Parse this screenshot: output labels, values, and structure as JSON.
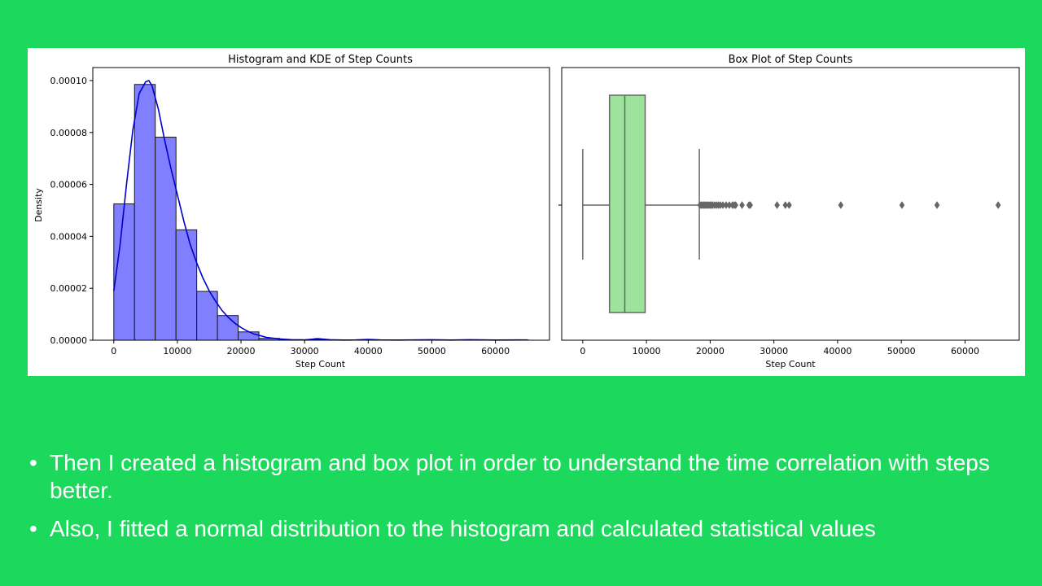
{
  "chart_data": [
    {
      "type": "histogram",
      "title": "Histogram and KDE of Step Counts",
      "xlabel": "Step Count",
      "ylabel": "Density",
      "xlim": [
        -3300,
        68500
      ],
      "ylim": [
        0,
        0.000105
      ],
      "xticks": [
        0,
        10000,
        20000,
        30000,
        40000,
        50000,
        60000
      ],
      "yticks": [
        0,
        2e-05,
        4e-05,
        6e-05,
        8e-05,
        0.0001
      ],
      "ytick_labels": [
        "0.00000",
        "0.00002",
        "0.00004",
        "0.00006",
        "0.00008",
        "0.00010"
      ],
      "bin_width": 3260,
      "bins": [
        {
          "x0": 0,
          "density": 5.25e-05
        },
        {
          "x0": 3260,
          "density": 9.85e-05
        },
        {
          "x0": 6520,
          "density": 7.82e-05
        },
        {
          "x0": 9780,
          "density": 4.25e-05
        },
        {
          "x0": 13040,
          "density": 1.88e-05
        },
        {
          "x0": 16300,
          "density": 9.5e-06
        },
        {
          "x0": 19560,
          "density": 3.2e-06
        },
        {
          "x0": 22820,
          "density": 7e-07
        },
        {
          "x0": 26080,
          "density": 2e-07
        },
        {
          "x0": 29340,
          "density": 2e-07
        },
        {
          "x0": 32600,
          "density": 1e-07
        },
        {
          "x0": 35860,
          "density": 1e-07
        },
        {
          "x0": 39120,
          "density": 1e-07
        },
        {
          "x0": 42380,
          "density": 1e-07
        },
        {
          "x0": 45640,
          "density": 1e-07
        },
        {
          "x0": 48900,
          "density": 1e-07
        },
        {
          "x0": 52160,
          "density": 1e-07
        },
        {
          "x0": 55420,
          "density": 1e-07
        },
        {
          "x0": 58680,
          "density": 1e-07
        },
        {
          "x0": 61940,
          "density": 1e-07
        }
      ],
      "kde": {
        "x": [
          0,
          1000,
          2000,
          3000,
          4000,
          5000,
          5500,
          6000,
          7000,
          8000,
          9000,
          10000,
          11000,
          12000,
          13000,
          14000,
          15000,
          16000,
          17000,
          18000,
          19000,
          20000,
          21000,
          22000,
          24000,
          26000,
          28000,
          30000,
          32000,
          34000,
          36000,
          38000,
          40000,
          42000,
          45000,
          50000,
          53000,
          56000,
          60000,
          65000
        ],
        "y": [
          1.9e-05,
          3.7e-05,
          6e-05,
          8.1e-05,
          9.5e-05,
          9.95e-05,
          0.0001,
          9.8e-05,
          8.9e-05,
          7.7e-05,
          6.6e-05,
          5.6e-05,
          4.6e-05,
          3.7e-05,
          3e-05,
          2.4e-05,
          1.9e-05,
          1.5e-05,
          1.15e-05,
          8.8e-06,
          6.6e-06,
          4.9e-06,
          3.5e-06,
          2.4e-06,
          1.1e-06,
          5e-07,
          2e-07,
          1e-07,
          6e-07,
          2e-07,
          5e-08,
          1e-07,
          3e-07,
          1e-07,
          5e-08,
          2e-07,
          5e-08,
          2e-07,
          5e-08,
          1e-07
        ]
      },
      "colors": {
        "bar_fill": "#7f7fff",
        "bar_edge": "#1a1a1a",
        "kde_line": "#0000cc"
      }
    },
    {
      "type": "box",
      "title": "Box Plot of Step Counts",
      "xlabel": "Step Count",
      "xlim": [
        -3300,
        68500
      ],
      "xticks": [
        0,
        10000,
        20000,
        30000,
        40000,
        50000,
        60000
      ],
      "whisker_low": 0,
      "q1": 4200,
      "median": 6600,
      "q3": 9800,
      "whisker_high": 18300,
      "outliers": [
        18400,
        18600,
        18800,
        19000,
        19200,
        19400,
        19600,
        19800,
        20000,
        20200,
        20400,
        20700,
        21000,
        21300,
        21600,
        22000,
        22500,
        23000,
        23500,
        23800,
        24000,
        25000,
        26100,
        26300,
        30500,
        31800,
        32400,
        40500,
        50100,
        55600,
        65200
      ],
      "colors": {
        "box_fill": "#9de39b",
        "line": "#666666"
      }
    }
  ],
  "bullets": [
    "Then I created a histogram and box plot in order to understand the time correlation with steps better.",
    "Also, I fitted a normal distribution to the histogram and calculated statistical values"
  ]
}
